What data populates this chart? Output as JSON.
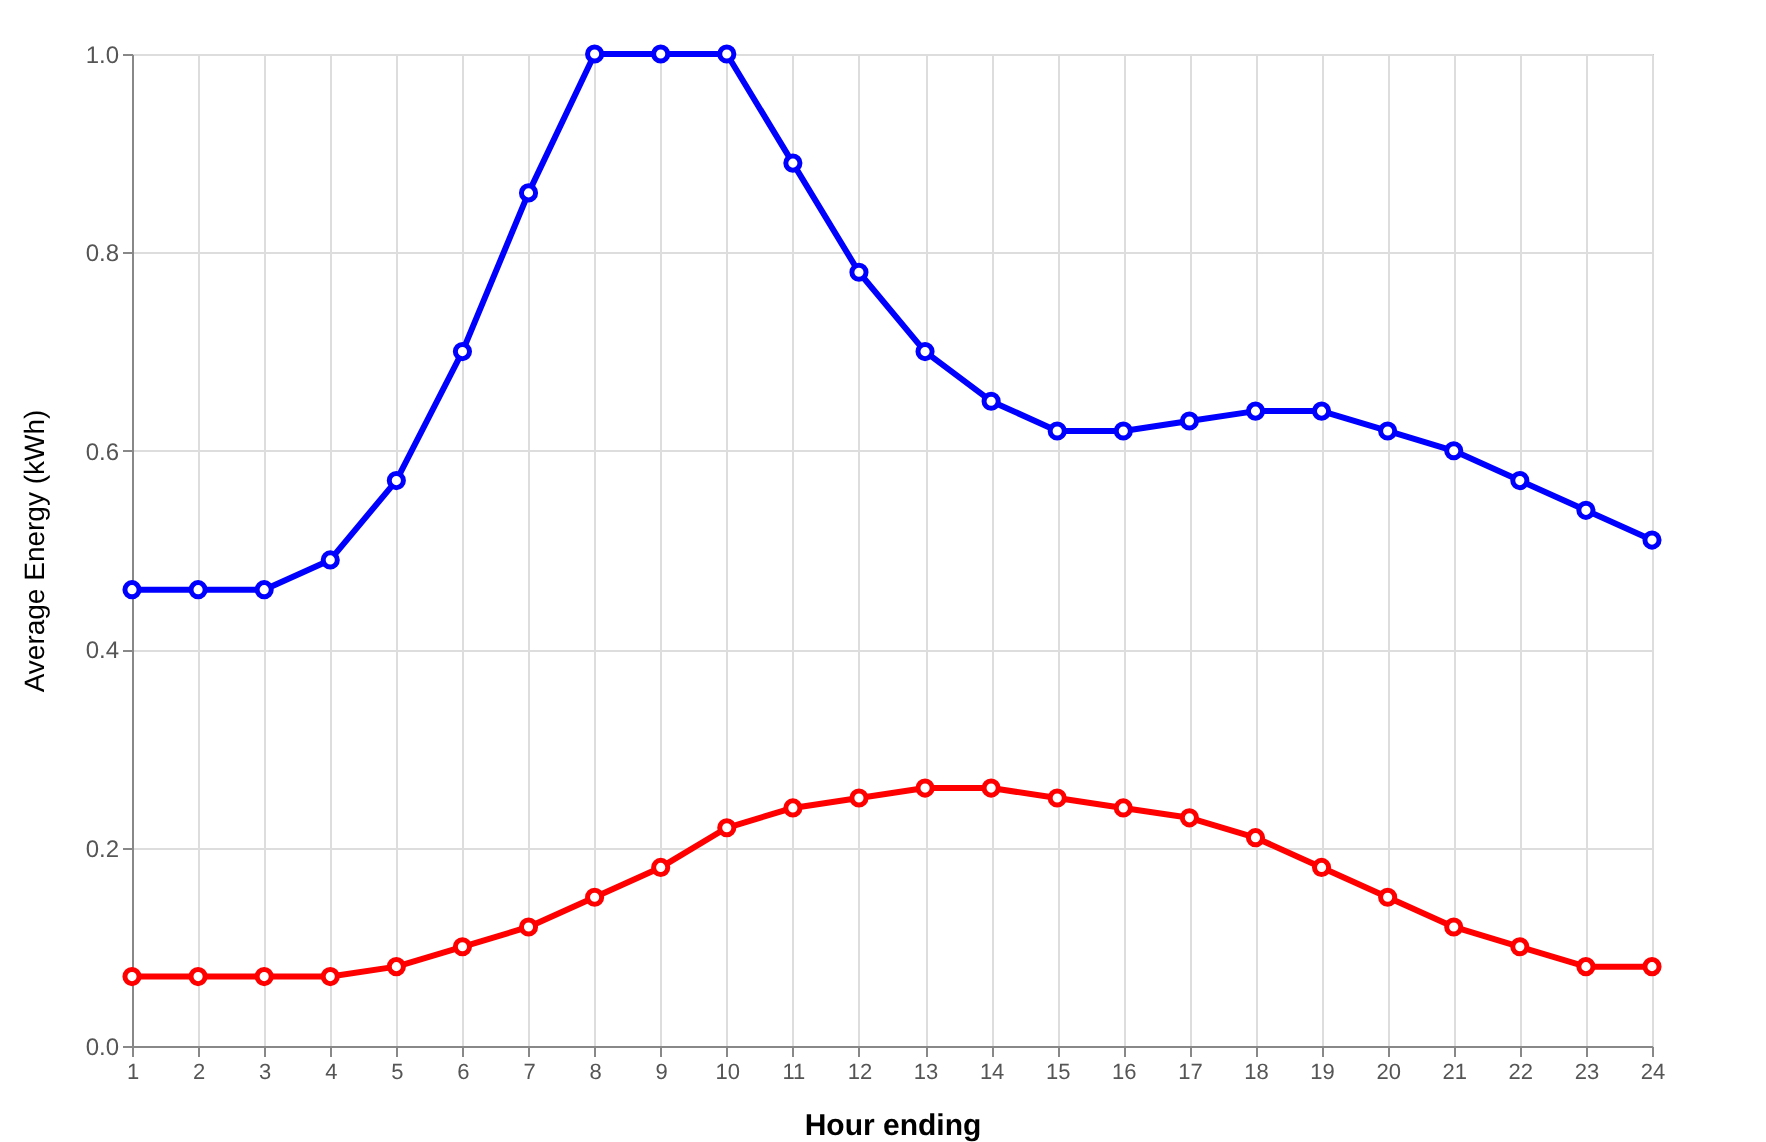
{
  "chart_data": {
    "type": "line",
    "xlabel": "Hour ending",
    "ylabel": "Average Energy (kWh)",
    "x": [
      1,
      2,
      3,
      4,
      5,
      6,
      7,
      8,
      9,
      10,
      11,
      12,
      13,
      14,
      15,
      16,
      17,
      18,
      19,
      20,
      21,
      22,
      23,
      24
    ],
    "series": [
      {
        "color": "#0000ff",
        "values": [
          0.46,
          0.46,
          0.46,
          0.49,
          0.57,
          0.7,
          0.86,
          1.0,
          1.0,
          1.0,
          0.89,
          0.78,
          0.7,
          0.65,
          0.62,
          0.62,
          0.63,
          0.64,
          0.64,
          0.62,
          0.6,
          0.57,
          0.54,
          0.51
        ]
      },
      {
        "color": "#ff0000",
        "values": [
          0.07,
          0.07,
          0.07,
          0.07,
          0.08,
          0.1,
          0.12,
          0.15,
          0.18,
          0.22,
          0.24,
          0.25,
          0.26,
          0.26,
          0.25,
          0.24,
          0.23,
          0.21,
          0.18,
          0.15,
          0.12,
          0.1,
          0.08,
          0.08
        ]
      }
    ],
    "xlim": [
      1,
      24
    ],
    "xticks": [
      1,
      2,
      3,
      4,
      5,
      6,
      7,
      8,
      9,
      10,
      11,
      12,
      13,
      14,
      15,
      16,
      17,
      18,
      19,
      20,
      21,
      22,
      23,
      24
    ],
    "ylim": [
      0,
      1
    ],
    "yticks": [
      {
        "value": 0,
        "label": "0.0"
      },
      {
        "value": 0.2,
        "label": "0.2"
      },
      {
        "value": 0.4,
        "label": "0.4"
      },
      {
        "value": 0.6,
        "label": "0.6"
      },
      {
        "value": 0.8,
        "label": "0.8"
      },
      {
        "value": 1,
        "label": "1.0"
      }
    ],
    "grid": true,
    "marker": "circle",
    "line_style": "solid",
    "legend": false
  }
}
